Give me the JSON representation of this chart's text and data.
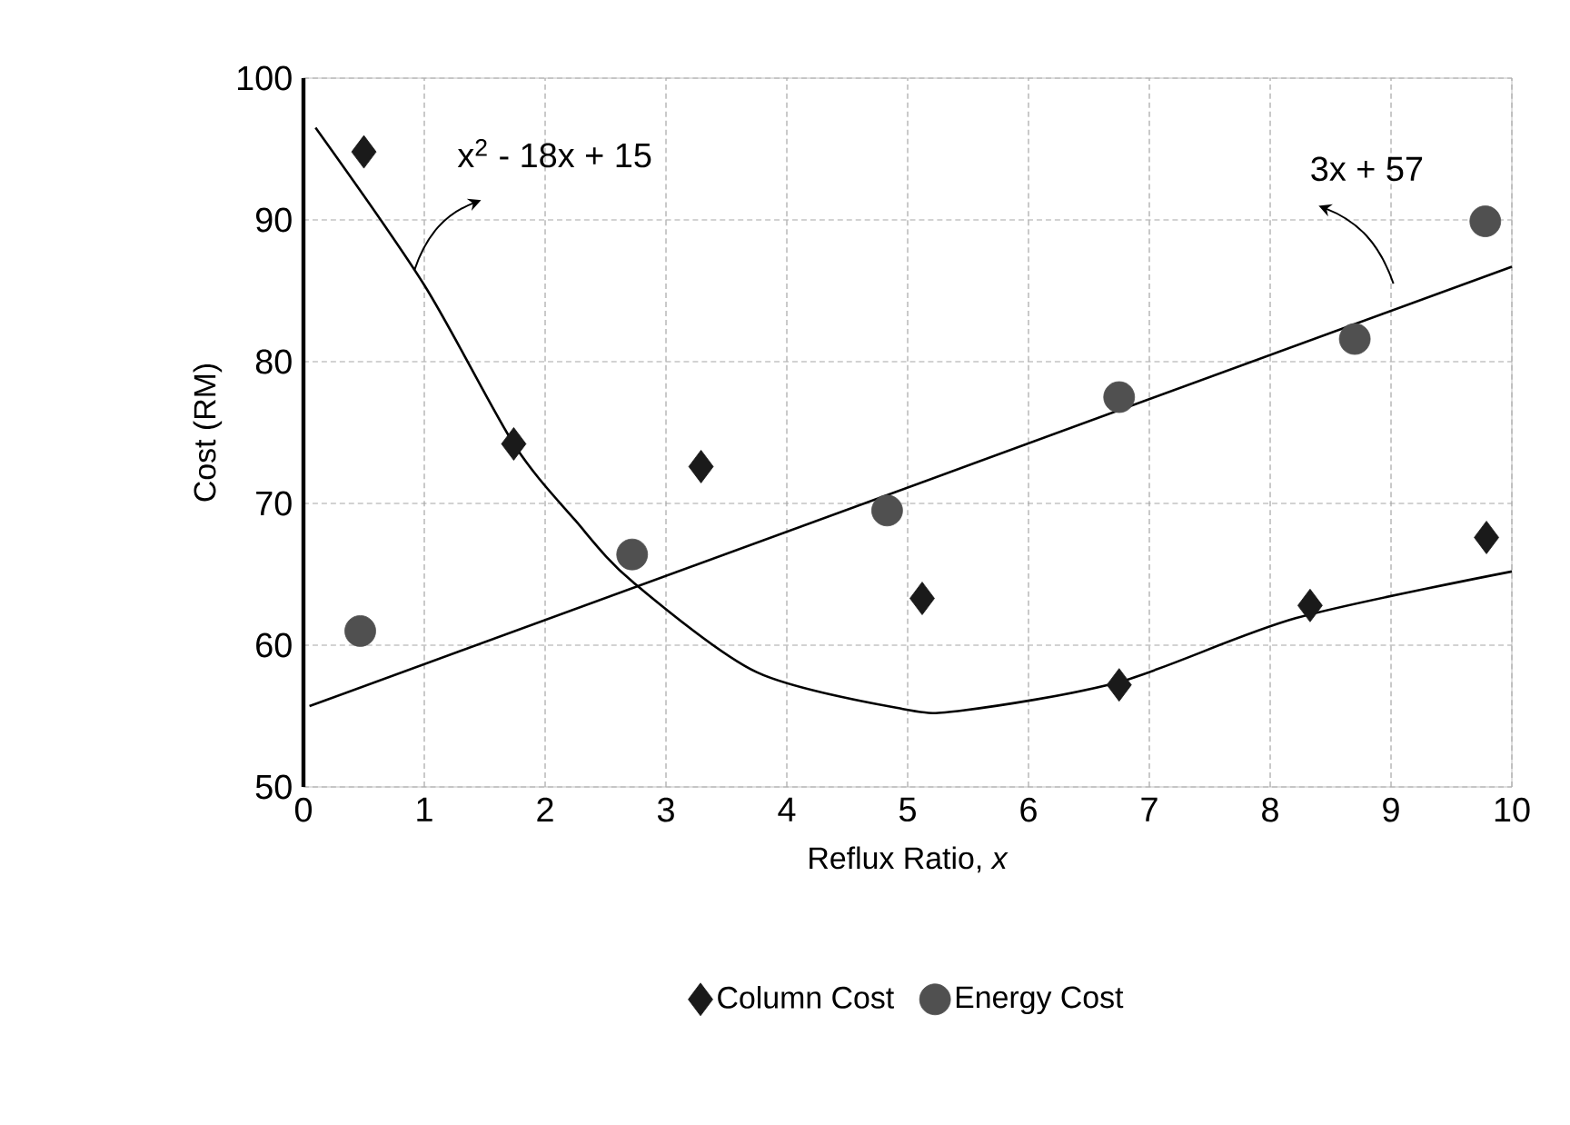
{
  "chart_data": {
    "type": "scatter",
    "xlabel": "Reflux Ratio, *x*",
    "ylabel": "Cost (RM)",
    "xlim": [
      0,
      10
    ],
    "ylim": [
      50,
      100
    ],
    "xticks": [
      0,
      1,
      2,
      3,
      4,
      5,
      6,
      7,
      8,
      9,
      10
    ],
    "yticks": [
      50,
      60,
      70,
      80,
      90,
      100
    ],
    "grid": true,
    "legend": "bottom",
    "annotations": [
      "x$^{2}$ - 18x + 15",
      "3x + 57"
    ],
    "series": [
      {
        "name": "Column Cost",
        "marker": "diamond",
        "color": "#1a1a1a",
        "x": [
          0.5,
          1.74,
          3.29,
          5.12,
          6.75,
          8.33,
          9.79
        ],
        "values": [
          94.8,
          74.2,
          72.6,
          63.3,
          57.2,
          62.8,
          67.6
        ]
      },
      {
        "name": "Energy Cost",
        "marker": "circle",
        "color": "#505050",
        "x": [
          0.47,
          2.72,
          4.83,
          6.75,
          8.7,
          9.78
        ],
        "values": [
          61.0,
          66.4,
          69.5,
          77.5,
          81.6,
          89.9
        ]
      },
      {
        "type": "line",
        "marker": "none",
        "color": "#000000",
        "x": [
          0.1,
          1.0,
          1.74,
          2.25,
          2.72,
          3.75,
          4.96,
          5.46,
          6.75,
          8.21,
          10
        ],
        "values": [
          96.5,
          85.4,
          74.2,
          68.8,
          64.5,
          58.1,
          55.5,
          55.4,
          57.4,
          61.9,
          65.2
        ]
      },
      {
        "type": "line",
        "marker": "none",
        "color": "#000000",
        "x": [
          0.05,
          10
        ],
        "values": [
          55.7,
          86.7
        ]
      }
    ]
  }
}
